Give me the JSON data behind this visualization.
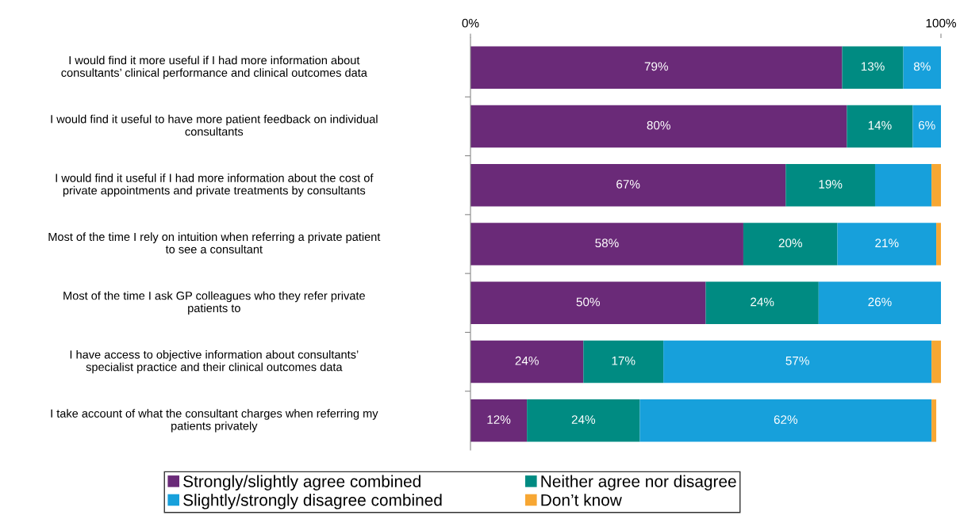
{
  "chart_data": {
    "type": "bar",
    "orientation": "horizontal",
    "stacked": true,
    "categories": [
      "I would find it more useful if I had more information about\nconsultants’ clinical performance and clinical outcomes data",
      "I would find it useful to have more patient feedback on individual\nconsultants",
      "I would find it useful if I had more information about the cost of\nprivate appointments and private treatments by consultants",
      "Most of the time I rely on intuition when referring a private patient\nto see a consultant",
      "Most of the time I ask GP colleagues who they refer private\npatients to",
      "I have access to objective information about consultants’\nspecialist practice and their clinical outcomes data",
      "I take account of what the consultant charges when referring my\npatients privately"
    ],
    "series": [
      {
        "name": "Strongly/slightly agree combined",
        "color": "#6a2a78",
        "values": [
          79,
          80,
          67,
          58,
          50,
          24,
          12
        ],
        "value_labels": [
          "79%",
          "80%",
          "67%",
          "58%",
          "50%",
          "24%",
          "12%"
        ]
      },
      {
        "name": "Neither agree nor disagree",
        "color": "#008b82",
        "values": [
          13,
          14,
          19,
          20,
          24,
          17,
          24
        ],
        "value_labels": [
          "13%",
          "14%",
          "19%",
          "20%",
          "24%",
          "17%",
          "24%"
        ]
      },
      {
        "name": "Slightly/strongly disagree combined",
        "color": "#17a0db",
        "values": [
          8,
          6,
          12,
          21,
          26,
          57,
          62
        ],
        "value_labels": [
          "8%",
          "6%",
          null,
          "21%",
          "26%",
          "57%",
          "62%"
        ]
      },
      {
        "name": "Don’t know",
        "color": "#f7a733",
        "values": [
          0,
          0,
          2,
          1,
          0,
          2,
          1
        ],
        "value_labels": [
          null,
          null,
          null,
          null,
          null,
          null,
          null
        ]
      }
    ],
    "xlim": [
      0,
      100
    ],
    "xticks": [
      {
        "value": 0,
        "label": "0%"
      },
      {
        "value": 100,
        "label": "100%"
      }
    ],
    "legend": "bottom",
    "grid": false
  }
}
